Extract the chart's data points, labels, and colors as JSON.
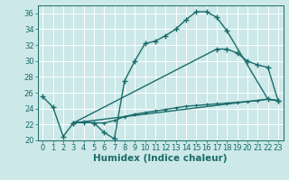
{
  "xlabel": "Humidex (Indice chaleur)",
  "xlim": [
    -0.5,
    23.5
  ],
  "ylim": [
    20,
    37
  ],
  "yticks": [
    20,
    22,
    24,
    26,
    28,
    30,
    32,
    34,
    36
  ],
  "xticks": [
    0,
    1,
    2,
    3,
    4,
    5,
    6,
    7,
    8,
    9,
    10,
    11,
    12,
    13,
    14,
    15,
    16,
    17,
    18,
    19,
    20,
    21,
    22,
    23
  ],
  "background_color": "#cce8e8",
  "grid_color": "#ffffff",
  "line_color": "#1a6b6b",
  "lines": [
    {
      "x": [
        0,
        1,
        2,
        3,
        4,
        5,
        6,
        7,
        8,
        9,
        10,
        11,
        12,
        13,
        14,
        15,
        16,
        17,
        18,
        22,
        23
      ],
      "y": [
        25.5,
        24.2,
        20.5,
        22.2,
        22.3,
        22.2,
        21.0,
        20.2,
        27.5,
        30.0,
        32.2,
        32.5,
        33.2,
        34.0,
        35.2,
        36.2,
        36.2,
        35.5,
        33.8,
        25.2,
        25.0
      ],
      "marker": "+",
      "lw": 1.0,
      "ms": 4,
      "mew": 1.0
    },
    {
      "x": [
        3,
        22,
        23
      ],
      "y": [
        22.2,
        25.2,
        25.0
      ],
      "marker": null,
      "lw": 1.0,
      "ms": 0,
      "mew": 0
    },
    {
      "x": [
        3,
        4,
        5,
        6,
        7,
        8,
        9,
        10,
        11,
        12,
        13,
        14,
        15,
        16,
        17,
        18,
        19,
        20,
        21,
        22,
        23
      ],
      "y": [
        22.2,
        22.3,
        22.2,
        22.2,
        22.5,
        23.0,
        23.3,
        23.5,
        23.7,
        23.9,
        24.1,
        24.3,
        24.4,
        24.5,
        24.6,
        24.7,
        24.8,
        24.9,
        25.0,
        25.2,
        25.0
      ],
      "marker": "+",
      "lw": 1.0,
      "ms": 3,
      "mew": 0.8
    },
    {
      "x": [
        3,
        17,
        18,
        19,
        20,
        21,
        22,
        23
      ],
      "y": [
        22.2,
        31.5,
        31.5,
        31.0,
        30.0,
        29.5,
        29.2,
        25.0
      ],
      "marker": "+",
      "lw": 1.0,
      "ms": 4,
      "mew": 1.0
    }
  ],
  "font_color": "#1a6b6b",
  "tick_fontsize": 6,
  "xlabel_fontsize": 7.5
}
